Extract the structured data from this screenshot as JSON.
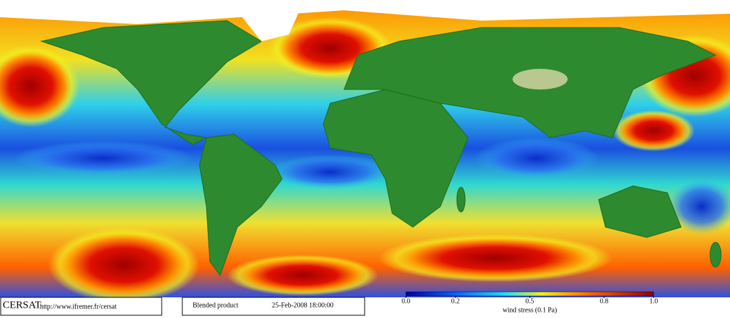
{
  "footer": {
    "logo": "CERSAT",
    "url": "http://www.ifremer.fr/cersat",
    "product": "Blended product",
    "datetime": "25-Feb-2008 18:00:00"
  },
  "colorbar": {
    "lim": [
      0,
      1
    ],
    "ticks": [
      {
        "value": 0,
        "label": "0.0"
      },
      0.2,
      0.5,
      0.8,
      {
        "value": 1,
        "label": "1.0"
      }
    ],
    "label": "wind stress (0.1 Pa)"
  }
}
